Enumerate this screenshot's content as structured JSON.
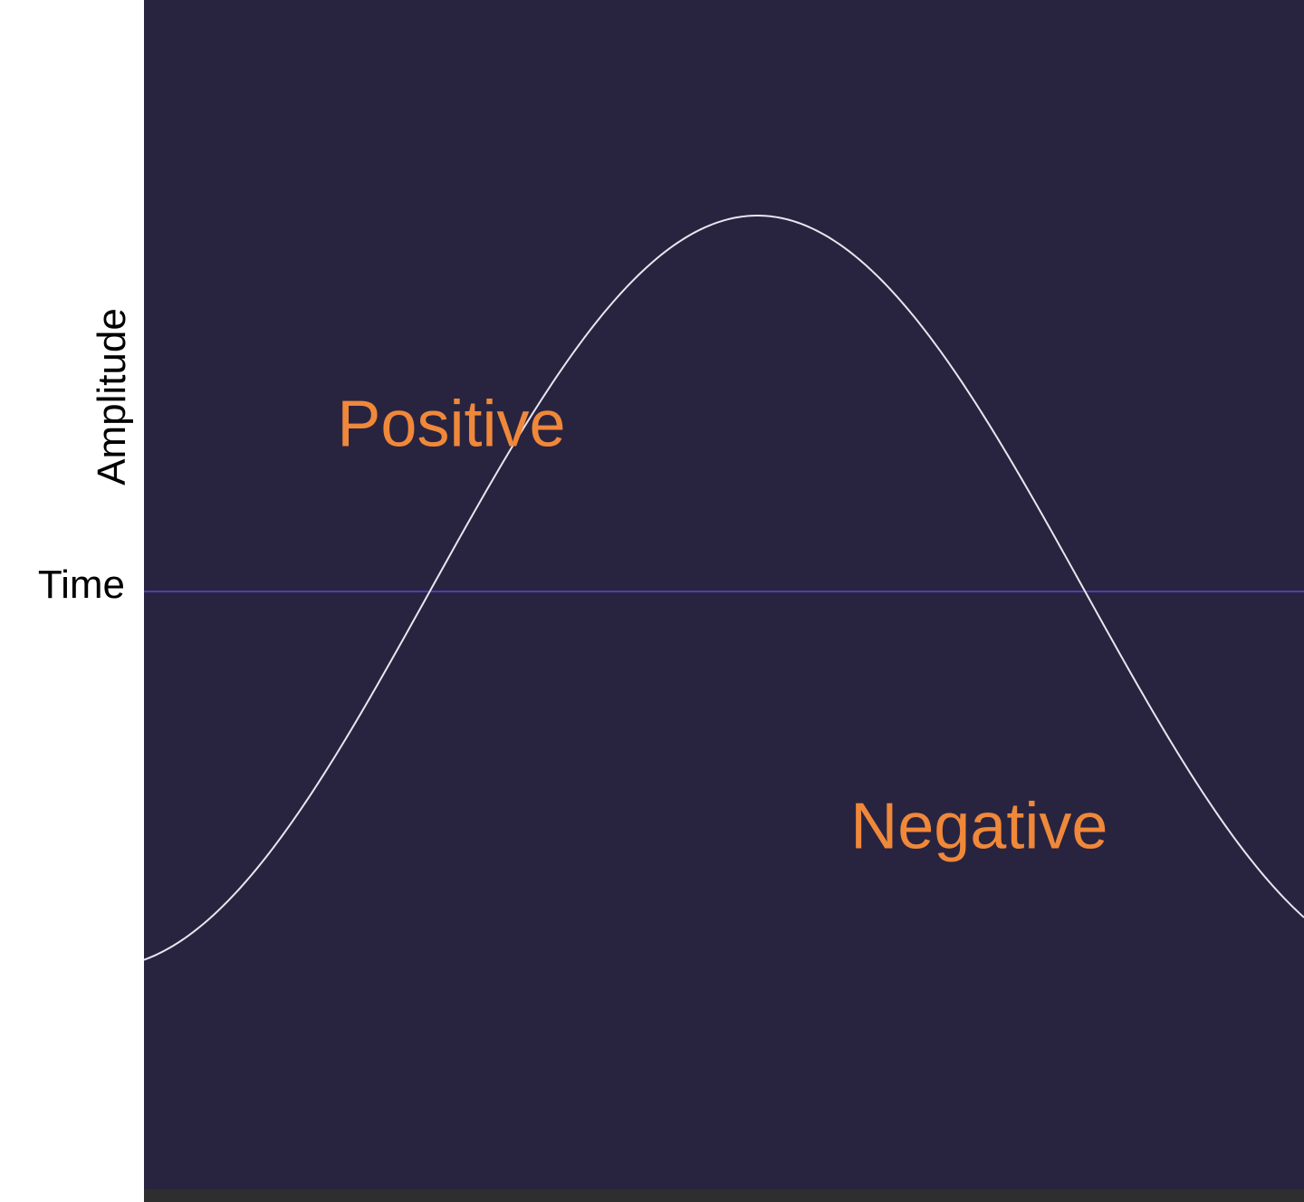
{
  "chart_data": {
    "type": "line",
    "title": "",
    "xlabel": "Time",
    "ylabel": "Amplitude",
    "xlim": [
      0,
      1.0
    ],
    "ylim": [
      -1.57,
      1.57
    ],
    "grid": false,
    "series": [
      {
        "function": "sine",
        "amplitude": 1.0,
        "cycles_per_unit": 0.885,
        "phase_at_start": -0.218
      }
    ],
    "annotations": [
      {
        "text": "Positive",
        "x": 0.265,
        "y": 0.45
      },
      {
        "text": "Negative",
        "x": 0.72,
        "y": -0.62
      }
    ],
    "colors": {
      "plot_background": "#282440",
      "curve": "#e8e6f0",
      "baseline": "#4a3fb0",
      "annotation": "#f0883a",
      "bottom_bar": "#2e2e2e"
    }
  }
}
